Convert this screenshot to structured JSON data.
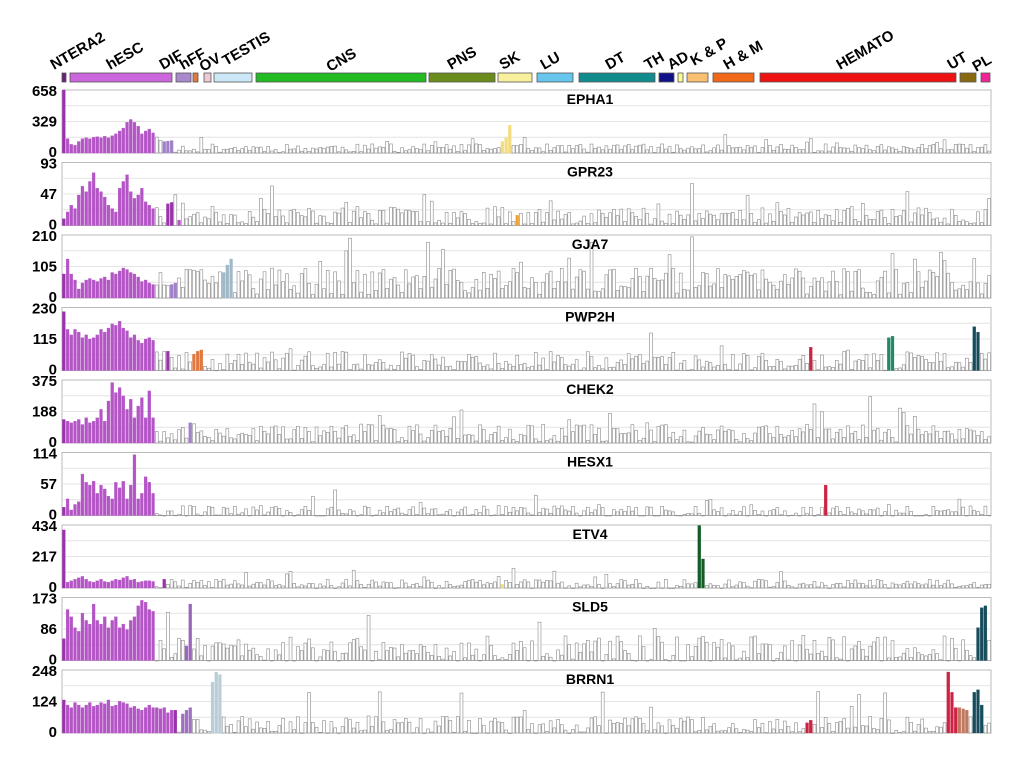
{
  "chart_data": {
    "type": "bar",
    "tissue_groups": [
      {
        "name": "NTERA2",
        "color": "#6a1f78"
      },
      {
        "name": "hESC",
        "color": "#cc66dd"
      },
      {
        "name": "DIF",
        "color": "#aa88cc"
      },
      {
        "name": "hFF",
        "color": "#e07840"
      },
      {
        "name": "OV",
        "color": "#f0c8d8"
      },
      {
        "name": "TESTIS",
        "color": "#cce8f6"
      },
      {
        "name": "CNS",
        "color": "#22bb22"
      },
      {
        "name": "PNS",
        "color": "#6a8c1c"
      },
      {
        "name": "SK",
        "color": "#f8f09c"
      },
      {
        "name": "LU",
        "color": "#66c6ee"
      },
      {
        "name": "DT",
        "color": "#108c8c"
      },
      {
        "name": "TH",
        "color": "#101088"
      },
      {
        "name": "AD",
        "color": "#fafa90"
      },
      {
        "name": "K & P",
        "color": "#f8c070"
      },
      {
        "name": "H & M",
        "color": "#f06818"
      },
      {
        "name": "HEMATO",
        "color": "#ee1111"
      },
      {
        "name": "UT",
        "color": "#8a6a10"
      },
      {
        "name": "PL",
        "color": "#ee2299"
      }
    ],
    "panels": [
      {
        "gene": "EPHA1",
        "ylim": [
          0,
          658
        ],
        "ticks": [
          "658",
          "329",
          "0"
        ],
        "highlights": [
          {
            "range": [
              0,
              0
            ],
            "color": "#9933aa",
            "values": [
              658
            ]
          },
          {
            "range": [
              1,
              24
            ],
            "color": "#b455c6",
            "values": [
              150,
              90,
              80,
              120,
              150,
              160,
              150,
              165,
              170,
              160,
              175,
              160,
              180,
              200,
              230,
              260,
              320,
              350,
              320,
              280,
              200,
              230,
              250,
              210
            ]
          },
          {
            "range": [
              27,
              29
            ],
            "color": "#a080c8",
            "values": [
              120,
              125,
              130
            ]
          },
          {
            "range": [
              118,
              120
            ],
            "color": "#f2dc80",
            "values": [
              120,
              160,
              290
            ]
          }
        ],
        "baseline": {
          "mean": 50,
          "noise": 45,
          "seed": 11
        }
      },
      {
        "gene": "GPR23",
        "ylim": [
          0,
          93
        ],
        "ticks": [
          "93",
          "47",
          "0"
        ],
        "highlights": [
          {
            "range": [
              0,
              0
            ],
            "color": "#9933aa",
            "values": [
              10
            ]
          },
          {
            "range": [
              1,
              24
            ],
            "color": "#b455c6",
            "values": [
              20,
              30,
              25,
              45,
              58,
              50,
              65,
              78,
              55,
              50,
              42,
              30,
              25,
              20,
              55,
              65,
              75,
              50,
              40,
              45,
              55,
              35,
              30,
              25
            ]
          },
          {
            "range": [
              28,
              29
            ],
            "color": "#9933aa",
            "values": [
              32,
              34
            ]
          },
          {
            "range": [
              31,
              31
            ],
            "color": "#b455c6",
            "values": [
              8
            ]
          },
          {
            "range": [
              122,
              122
            ],
            "color": "#f2a030",
            "values": [
              15
            ]
          }
        ],
        "baseline": {
          "mean": 15,
          "noise": 13,
          "seed": 23
        }
      },
      {
        "gene": "GJA7",
        "ylim": [
          0,
          210
        ],
        "ticks": [
          "210",
          "105",
          "0"
        ],
        "highlights": [
          {
            "range": [
              0,
              0
            ],
            "color": "#9933aa",
            "values": [
              80
            ]
          },
          {
            "range": [
              1,
              24
            ],
            "color": "#b455c6",
            "values": [
              130,
              80,
              60,
              30,
              50,
              60,
              65,
              60,
              55,
              65,
              70,
              60,
              85,
              80,
              90,
              100,
              95,
              85,
              80,
              70,
              55,
              60,
              50,
              45
            ]
          },
          {
            "range": [
              29,
              30
            ],
            "color": "#a080c8",
            "values": [
              45,
              50
            ]
          },
          {
            "range": [
              43,
              45
            ],
            "color": "#a0b8c8",
            "values": [
              85,
              110,
              130
            ]
          }
        ],
        "baseline": {
          "mean": 55,
          "noise": 45,
          "seed": 37
        }
      },
      {
        "gene": "PWP2H",
        "ylim": [
          0,
          230
        ],
        "ticks": [
          "230",
          "115",
          "0"
        ],
        "highlights": [
          {
            "range": [
              0,
              0
            ],
            "color": "#9933aa",
            "values": [
              215
            ]
          },
          {
            "range": [
              1,
              24
            ],
            "color": "#b455c6",
            "values": [
              150,
              130,
              150,
              140,
              120,
              130,
              115,
              120,
              130,
              150,
              140,
              155,
              170,
              165,
              180,
              155,
              145,
              120,
              130,
              110,
              100,
              115,
              120,
              110
            ]
          },
          {
            "range": [
              28,
              28
            ],
            "color": "#9933aa",
            "values": [
              70
            ]
          },
          {
            "range": [
              35,
              37
            ],
            "color": "#e07840",
            "values": [
              60,
              70,
              75
            ]
          },
          {
            "range": [
              201,
              201
            ],
            "color": "#cc2244",
            "values": [
              85
            ]
          },
          {
            "range": [
              222,
              223
            ],
            "color": "#228866",
            "values": [
              120,
              125
            ]
          },
          {
            "range": [
              245,
              246
            ],
            "color": "#164c5c",
            "values": [
              160,
              140
            ]
          }
        ],
        "baseline": {
          "mean": 35,
          "noise": 35,
          "seed": 41
        }
      },
      {
        "gene": "CHEK2",
        "ylim": [
          0,
          375
        ],
        "ticks": [
          "375",
          "188",
          "0"
        ],
        "highlights": [
          {
            "range": [
              0,
              0
            ],
            "color": "#9933aa",
            "values": [
              140
            ]
          },
          {
            "range": [
              1,
              24
            ],
            "color": "#b455c6",
            "values": [
              130,
              120,
              130,
              140,
              110,
              150,
              120,
              130,
              150,
              200,
              130,
              250,
              360,
              300,
              330,
              280,
              200,
              260,
              150,
              220,
              270,
              150,
              310,
              150
            ]
          },
          {
            "range": [
              34,
              34
            ],
            "color": "#a080c8",
            "values": [
              120
            ]
          }
        ],
        "baseline": {
          "mean": 60,
          "noise": 55,
          "seed": 53
        }
      },
      {
        "gene": "HESX1",
        "ylim": [
          0,
          114
        ],
        "ticks": [
          "114",
          "57",
          "0"
        ],
        "highlights": [
          {
            "range": [
              0,
              0
            ],
            "color": "#9933aa",
            "values": [
              15
            ]
          },
          {
            "range": [
              1,
              24
            ],
            "color": "#b455c6",
            "values": [
              30,
              10,
              20,
              25,
              75,
              60,
              55,
              62,
              40,
              55,
              48,
              35,
              30,
              60,
              50,
              62,
              30,
              55,
              110,
              30,
              40,
              70,
              60,
              40
            ]
          },
          {
            "range": [
              205,
              205
            ],
            "color": "#cc2244",
            "values": [
              55
            ]
          }
        ],
        "baseline": {
          "mean": 8,
          "noise": 10,
          "seed": 67
        }
      },
      {
        "gene": "ETV4",
        "ylim": [
          0,
          434
        ],
        "ticks": [
          "434",
          "217",
          "0"
        ],
        "highlights": [
          {
            "range": [
              0,
              0
            ],
            "color": "#9933aa",
            "values": [
              400
            ]
          },
          {
            "range": [
              1,
              24
            ],
            "color": "#b455c6",
            "values": [
              40,
              50,
              60,
              70,
              80,
              60,
              45,
              40,
              50,
              60,
              45,
              40,
              50,
              60,
              55,
              70,
              80,
              55,
              60,
              40,
              45,
              50,
              50,
              45
            ]
          },
          {
            "range": [
              27,
              27
            ],
            "color": "#9933aa",
            "values": [
              60
            ]
          },
          {
            "range": [
              118,
              118
            ],
            "color": "#f2dc80",
            "values": [
              25
            ]
          },
          {
            "range": [
              171,
              172
            ],
            "color": "#135c25",
            "values": [
              430,
              200
            ]
          }
        ],
        "baseline": {
          "mean": 28,
          "noise": 32,
          "seed": 79
        }
      },
      {
        "gene": "SLD5",
        "ylim": [
          0,
          173
        ],
        "ticks": [
          "173",
          "86",
          "0"
        ],
        "highlights": [
          {
            "range": [
              0,
              0
            ],
            "color": "#9933aa",
            "values": [
              60
            ]
          },
          {
            "range": [
              1,
              24
            ],
            "color": "#b455c6",
            "values": [
              140,
              120,
              90,
              80,
              130,
              110,
              100,
              155,
              110,
              100,
              120,
              90,
              110,
              120,
              90,
              100,
              85,
              110,
              120,
              150,
              165,
              160,
              140,
              135
            ]
          },
          {
            "range": [
              33,
              34
            ],
            "color": "#9a66bb",
            "values": [
              40,
              155
            ]
          },
          {
            "range": [
              246,
              248
            ],
            "color": "#164c5c",
            "values": [
              90,
              145,
              150
            ]
          }
        ],
        "baseline": {
          "mean": 30,
          "noise": 38,
          "seed": 83
        }
      },
      {
        "gene": "BRRN1",
        "ylim": [
          0,
          248
        ],
        "ticks": [
          "248",
          "124",
          "0"
        ],
        "highlights": [
          {
            "range": [
              0,
              0
            ],
            "color": "#9933aa",
            "values": [
              130
            ]
          },
          {
            "range": [
              1,
              29
            ],
            "color": "#b455c6",
            "values": [
              110,
              100,
              120,
              110,
              100,
              110,
              120,
              105,
              110,
              120,
              115,
              130,
              105,
              110,
              125,
              120,
              115,
              100,
              105,
              95,
              90,
              100,
              110,
              100,
              100,
              95,
              100,
              80,
              90
            ]
          },
          {
            "range": [
              30,
              30
            ],
            "color": "#9933aa",
            "values": [
              90
            ]
          },
          {
            "range": [
              32,
              34
            ],
            "color": "#a070c0",
            "values": [
              75,
              90,
              100
            ]
          },
          {
            "range": [
              40,
              42
            ],
            "color": "#b8cdd6",
            "values": [
              200,
              240,
              230
            ]
          },
          {
            "range": [
              200,
              201
            ],
            "color": "#cc2244",
            "values": [
              40,
              50
            ]
          },
          {
            "range": [
              238,
              240
            ],
            "color": "#cc2244",
            "values": [
              240,
              160,
              100
            ]
          },
          {
            "range": [
              241,
              243
            ],
            "color": "#c07860",
            "values": [
              100,
              95,
              90
            ]
          },
          {
            "range": [
              245,
              247
            ],
            "color": "#164c5c",
            "values": [
              160,
              170,
              110
            ]
          }
        ],
        "baseline": {
          "mean": 30,
          "noise": 35,
          "seed": 97
        }
      }
    ]
  }
}
